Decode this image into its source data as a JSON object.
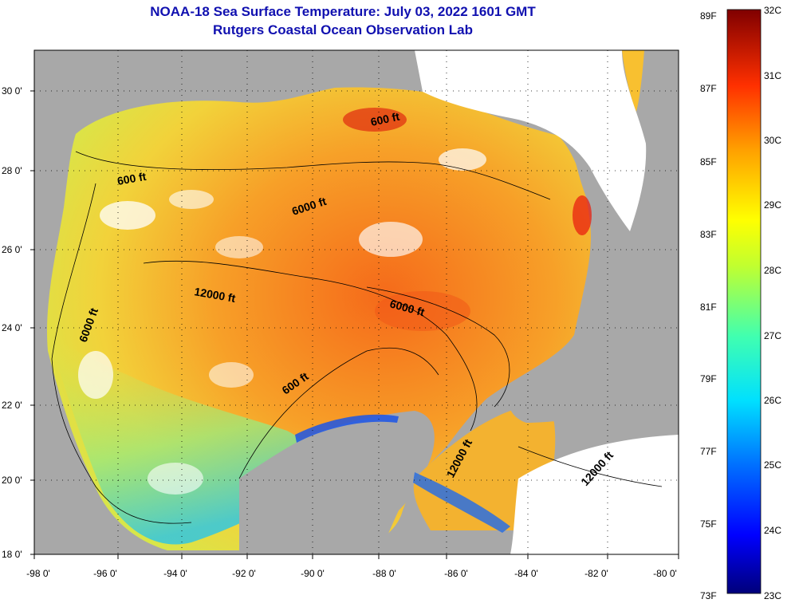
{
  "title": {
    "line1": "NOAA-18 Sea Surface Temperature:  July 03, 2022 1601 GMT",
    "line2": "Rutgers Coastal Ocean Observation Lab"
  },
  "axes": {
    "lat_labels": [
      "30 0'",
      "28 0'",
      "26 0'",
      "24 0'",
      "22 0'",
      "20 0'",
      "18 0'"
    ],
    "lon_labels": [
      "-98 0'",
      "-96 0'",
      "-94 0'",
      "-92 0'",
      "-90 0'",
      "-88 0'",
      "-86 0'",
      "-84 0'",
      "-82 0'",
      "-80 0'"
    ]
  },
  "contour_labels": [
    "600 ft",
    "6000 ft",
    "12000 ft",
    "6000 ft",
    "6000 ft",
    "600 ft",
    "600 ft",
    "12000 ft",
    "12000 ft"
  ],
  "colorbar": {
    "fahrenheit": [
      "89F",
      "87F",
      "85F",
      "83F",
      "81F",
      "79F",
      "77F",
      "75F",
      "73F"
    ],
    "celsius": [
      "32C",
      "31C",
      "30C",
      "29C",
      "28C",
      "27C",
      "26C",
      "25C",
      "24C",
      "23C"
    ]
  },
  "colors": {
    "land": "#a8a8a8",
    "cloud": "#ffffff",
    "title": "#1010b0"
  }
}
